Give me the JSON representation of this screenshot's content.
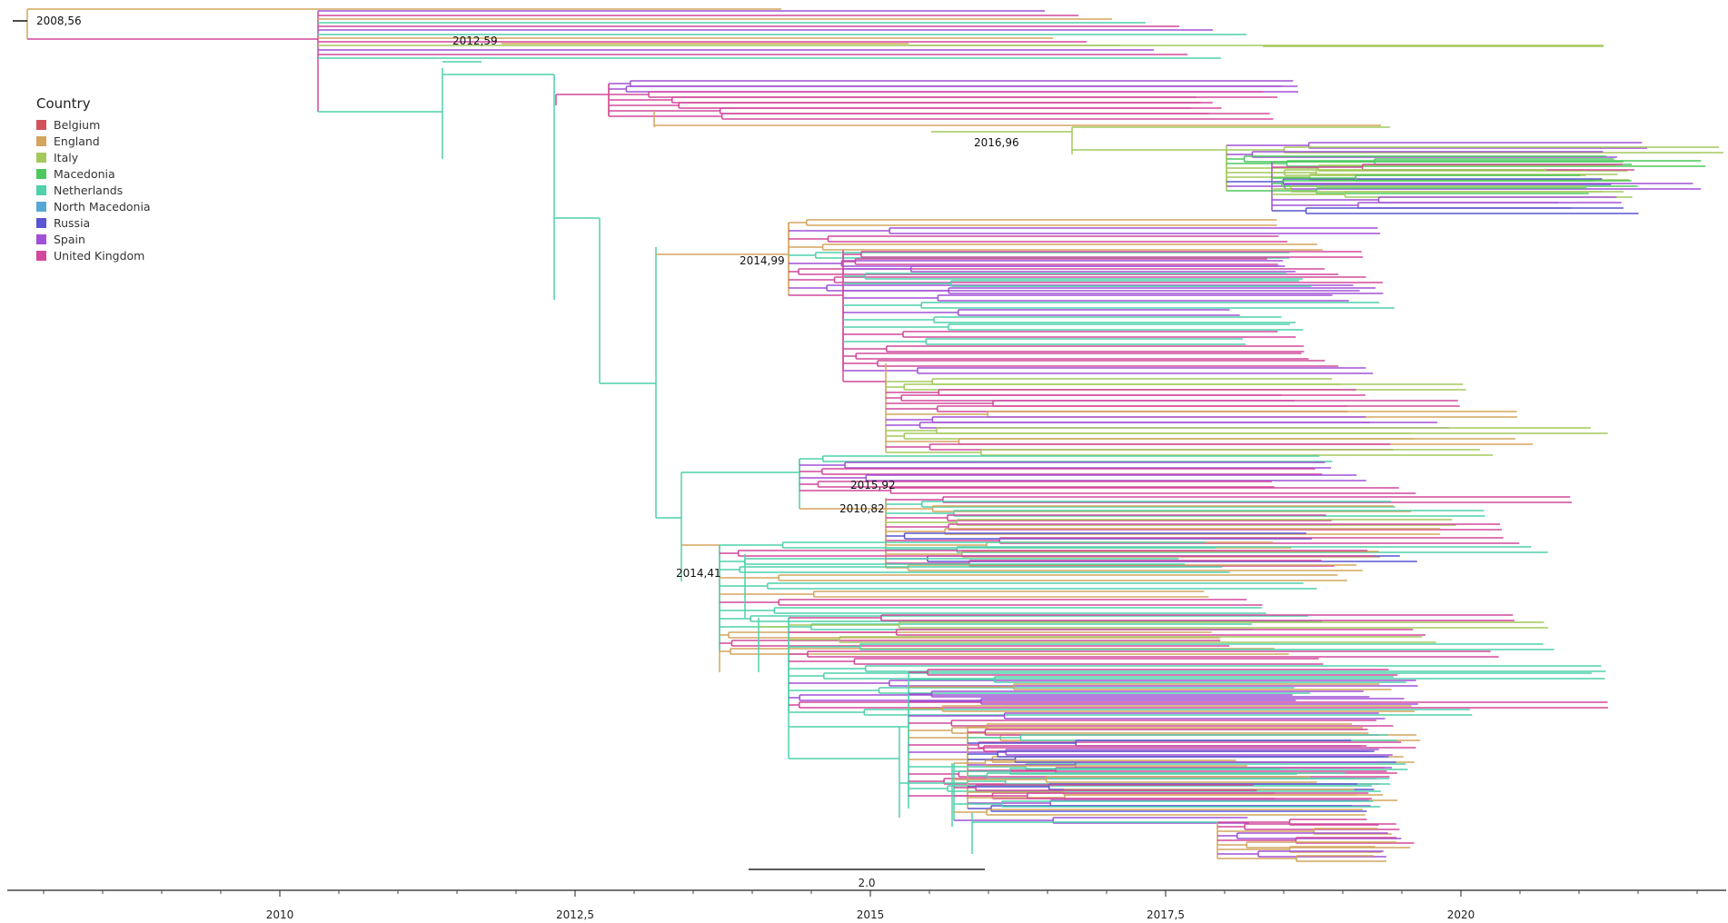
{
  "legend": {
    "title": "Country",
    "items": [
      {
        "label": "Belgium",
        "color": "#d1525a"
      },
      {
        "label": "England",
        "color": "#d3a55f"
      },
      {
        "label": "Italy",
        "color": "#a4c95b"
      },
      {
        "label": "Macedonia",
        "color": "#4cc85e"
      },
      {
        "label": "Netherlands",
        "color": "#4fd1ab"
      },
      {
        "label": "North Macedonia",
        "color": "#57a7d4"
      },
      {
        "label": "Russia",
        "color": "#5a55d2"
      },
      {
        "label": "Spain",
        "color": "#a151d5"
      },
      {
        "label": "United Kingdom",
        "color": "#d2489c"
      }
    ]
  },
  "node_labels": [
    "2008,56",
    "2012,59",
    "2016,96",
    "2014,99",
    "2015,92",
    "2010,82",
    "2014,41"
  ],
  "scale_bar_label": "2.0",
  "axis": {
    "ticks": [
      {
        "value": 2010,
        "label": "2010"
      },
      {
        "value": 2012.5,
        "label": "2012,5"
      },
      {
        "value": 2015,
        "label": "2015"
      },
      {
        "value": 2017.5,
        "label": "2017,5"
      },
      {
        "value": 2020,
        "label": "2020"
      }
    ],
    "range": [
      2007.64,
      2022.3
    ]
  }
}
